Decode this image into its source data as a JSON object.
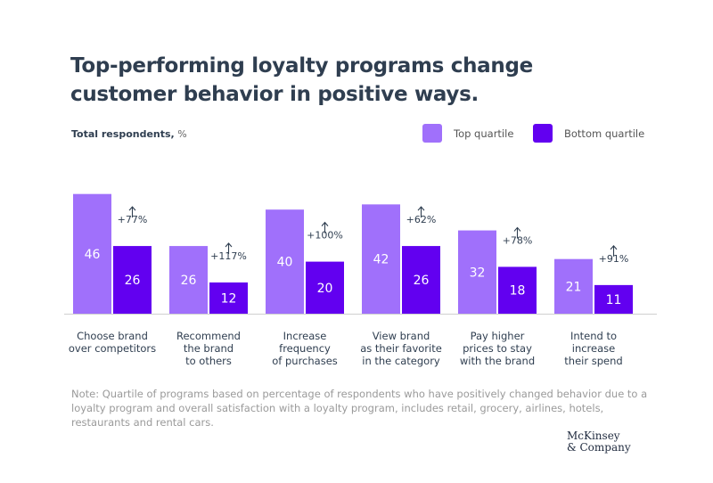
{
  "title": "Top-performing loyalty programs change customer behavior in positive ways.",
  "subtitle_bold": "Total respondents,",
  "subtitle_unit": "%",
  "legend": [
    {
      "label": "Top quartile",
      "color": "#a070fb"
    },
    {
      "label": "Bottom quartile",
      "color": "#6200f0"
    }
  ],
  "note": "Note: Quartile of programs based on percentage of respondents who have positively changed behavior due to a loyalty program and overall satisfaction with a loyalty program, includes retail, grocery, airlines, hotels, restaurants and rental cars.",
  "logo": "McKinsey & Company",
  "chart_data": {
    "type": "bar",
    "ylabel": "Total respondents, %",
    "categories": [
      [
        "Choose brand",
        "over competitors"
      ],
      [
        "Recommend",
        "the brand",
        "to others"
      ],
      [
        "Increase",
        "frequency",
        "of purchases"
      ],
      [
        "View brand",
        "as their favorite",
        "in the category"
      ],
      [
        "Pay higher",
        "prices to stay",
        "with the brand"
      ],
      [
        "Intend to",
        "increase",
        "their spend"
      ]
    ],
    "series": [
      {
        "name": "Top quartile",
        "values": [
          46,
          26,
          40,
          42,
          32,
          21
        ]
      },
      {
        "name": "Bottom quartile",
        "values": [
          26,
          12,
          20,
          26,
          18,
          11
        ]
      }
    ],
    "annotations": [
      "+77%",
      "+117%",
      "+100%",
      "+62%",
      "+78%",
      "+91%"
    ],
    "annotation_icon": "arrow-up-icon",
    "grid": false
  }
}
